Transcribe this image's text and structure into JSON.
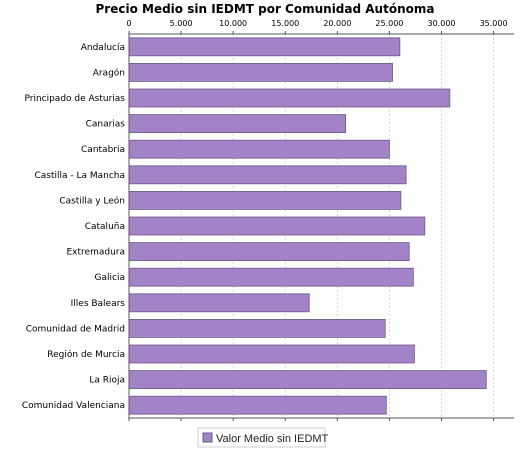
{
  "colors": {
    "bar": "#a383c8",
    "bar_stroke": "#6e5a8a",
    "grid": "#cfcfcf",
    "axis": "#555555"
  },
  "chart_data": {
    "type": "bar",
    "orientation": "horizontal",
    "title": "Precio Medio sin IEDMT por Comunidad Autónoma",
    "categories": [
      "Andalucía",
      "Aragón",
      "Principado de Asturias",
      "Canarias",
      "Cantabria",
      "Castilla - La Mancha",
      "Castilla y León",
      "Cataluña",
      "Extremadura",
      "Galicia",
      "Illes Balears",
      "Comunidad de Madrid",
      "Región de Murcia",
      "La Rioja",
      "Comunidad Valenciana"
    ],
    "series": [
      {
        "name": "Valor Medio sin IEDMT",
        "values": [
          26000,
          25300,
          30800,
          20800,
          25000,
          26600,
          26100,
          28400,
          26900,
          27300,
          17300,
          24600,
          27400,
          34300,
          24700
        ]
      }
    ],
    "xlim": [
      0,
      36000
    ],
    "ticks": [
      "0",
      "5.000",
      "10.000",
      "15.000",
      "20.000",
      "25.000",
      "30.000",
      "35.000"
    ],
    "tick_values": [
      0,
      5000,
      10000,
      15000,
      20000,
      25000,
      30000,
      35000
    ],
    "grid": true,
    "legend_position": "bottom"
  }
}
